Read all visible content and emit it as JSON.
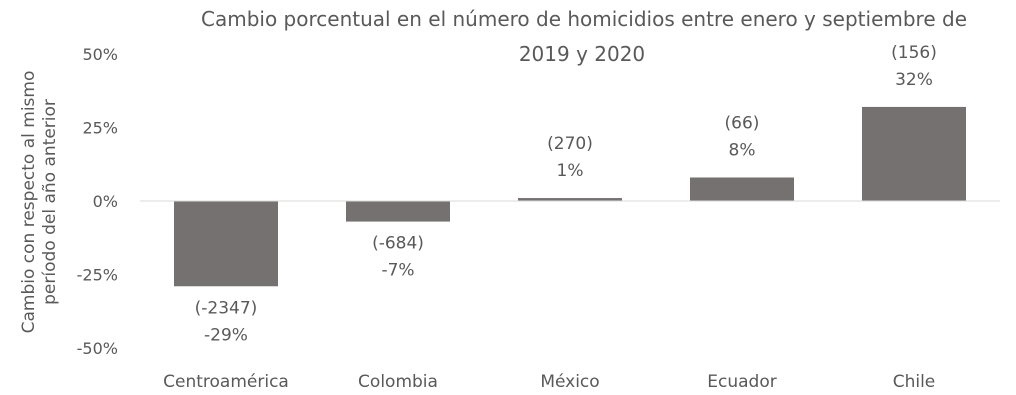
{
  "chart_data": {
    "type": "bar",
    "title_lines": [
      "Cambio porcentual en el número de homicidios entre enero y septiembre de",
      "2019 y 2020"
    ],
    "ylabel_lines": [
      "Cambio con respecto al mismo",
      "período del año anterior"
    ],
    "xlabel": "",
    "categories": [
      "Centroamérica",
      "Colombia",
      "México",
      "Ecuador",
      "Chile"
    ],
    "values": [
      -29,
      -7,
      1,
      8,
      32
    ],
    "value_labels": [
      "-29%",
      "-7%",
      "1%",
      "8%",
      "32%"
    ],
    "count_labels": [
      "(-2347)",
      "(-684)",
      "(270)",
      "(66)",
      "(156)"
    ],
    "yticks": [
      50,
      25,
      0,
      -25,
      -50
    ],
    "ytick_labels": [
      "50%",
      "25%",
      "0%",
      "-25%",
      "-50%"
    ],
    "ylim": [
      -50,
      50
    ],
    "grid": false,
    "legend": "none",
    "bar_color": "#767171",
    "axis_color": "#d9d9d9",
    "text_color": "#595959"
  }
}
